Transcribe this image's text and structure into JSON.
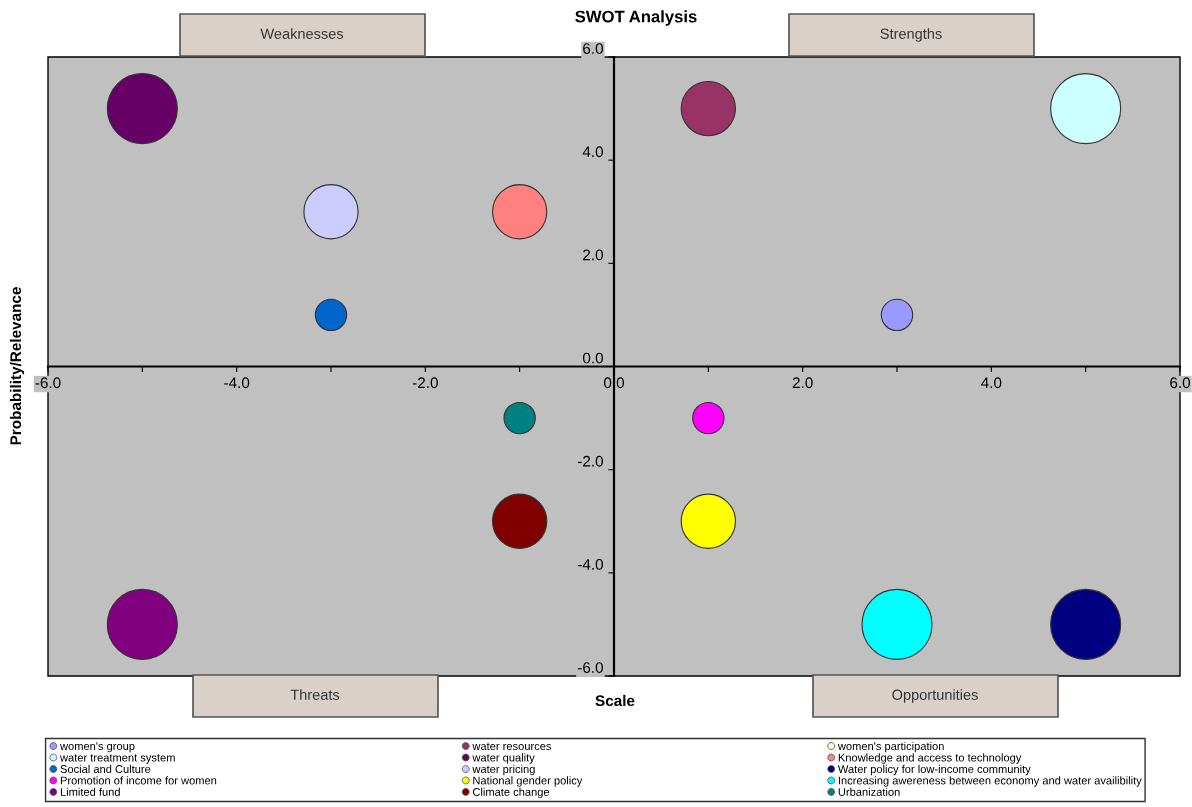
{
  "chart_data": {
    "type": "bubble",
    "title": "SWOT Analysis",
    "xlabel": "Scale",
    "ylabel": "Probability/Relevance",
    "annotations": [
      "Weaknesses",
      "Strengths",
      "Threats",
      "Opportunities"
    ],
    "xlim": [
      -6,
      6
    ],
    "ylim": [
      -6,
      6
    ],
    "xticks": [
      {
        "value": -6,
        "label": "-6.0"
      },
      {
        "value": -5,
        "label": null
      },
      {
        "value": -4,
        "label": "-4.0"
      },
      {
        "value": -3,
        "label": null
      },
      {
        "value": -2,
        "label": "-2.0"
      },
      {
        "value": -1,
        "label": null
      },
      {
        "value": 0,
        "label": "0.0"
      },
      {
        "value": 1,
        "label": null
      },
      {
        "value": 2,
        "label": "2.0"
      },
      {
        "value": 3,
        "label": null
      },
      {
        "value": 4,
        "label": "4.0"
      },
      {
        "value": 5,
        "label": null
      },
      {
        "value": 6,
        "label": "6.0"
      }
    ],
    "yticks": [
      {
        "value": -6,
        "label": "-6.0"
      },
      {
        "value": -4,
        "label": "-4.0"
      },
      {
        "value": -2,
        "label": "-2.0"
      },
      {
        "value": 0,
        "label": "0.0"
      },
      {
        "value": 2,
        "label": "2.0"
      },
      {
        "value": 4,
        "label": "4.0"
      },
      {
        "value": 6,
        "label": "6.0"
      }
    ],
    "grid": false,
    "legend": "bottom",
    "series": [
      {
        "name": "women's group",
        "color": "#9999ff",
        "x": [
          3
        ],
        "values": [
          1
        ],
        "sizes": [
          0.2
        ]
      },
      {
        "name": "water resources",
        "color": "#993366",
        "x": [
          1
        ],
        "values": [
          5
        ],
        "sizes": [
          0.6
        ]
      },
      {
        "name": "women's participation",
        "color": "#ffffcc",
        "x": [
          null
        ],
        "values": [
          null
        ],
        "sizes": [
          null
        ]
      },
      {
        "name": "water treatment system",
        "color": "#ccffff",
        "x": [
          5
        ],
        "values": [
          5
        ],
        "sizes": [
          1
        ]
      },
      {
        "name": "water quality",
        "color": "#660066",
        "x": [
          -5
        ],
        "values": [
          5
        ],
        "sizes": [
          1
        ]
      },
      {
        "name": "Knowledge and access to technology",
        "color": "#ff8080",
        "x": [
          -1
        ],
        "values": [
          3
        ],
        "sizes": [
          0.6
        ]
      },
      {
        "name": "Social and Culture",
        "color": "#0066cc",
        "x": [
          -3
        ],
        "values": [
          1
        ],
        "sizes": [
          0.2
        ]
      },
      {
        "name": "water pricing",
        "color": "#ccccff",
        "x": [
          -3
        ],
        "values": [
          3
        ],
        "sizes": [
          0.6
        ]
      },
      {
        "name": "Water policy for low-income community",
        "color": "#000080",
        "x": [
          5
        ],
        "values": [
          -5
        ],
        "sizes": [
          1
        ]
      },
      {
        "name": "Promotion of income for women",
        "color": "#ff00ff",
        "x": [
          1
        ],
        "values": [
          -1
        ],
        "sizes": [
          0.2
        ]
      },
      {
        "name": "National gender policy",
        "color": "#ffff00",
        "x": [
          1
        ],
        "values": [
          -3
        ],
        "sizes": [
          0.6
        ]
      },
      {
        "name": "Increasing awereness between economy and water availibility",
        "color": "#00ffff",
        "x": [
          3
        ],
        "values": [
          -5
        ],
        "sizes": [
          1
        ]
      },
      {
        "name": "Limited fund",
        "color": "#800080",
        "x": [
          -5
        ],
        "values": [
          -5
        ],
        "sizes": [
          1
        ]
      },
      {
        "name": "Climate change",
        "color": "#800000",
        "x": [
          -1
        ],
        "values": [
          -3
        ],
        "sizes": [
          0.6
        ]
      },
      {
        "name": "Urbanization",
        "color": "#008080",
        "x": [
          -1
        ],
        "values": [
          -1
        ],
        "sizes": [
          0.2
        ]
      }
    ]
  }
}
